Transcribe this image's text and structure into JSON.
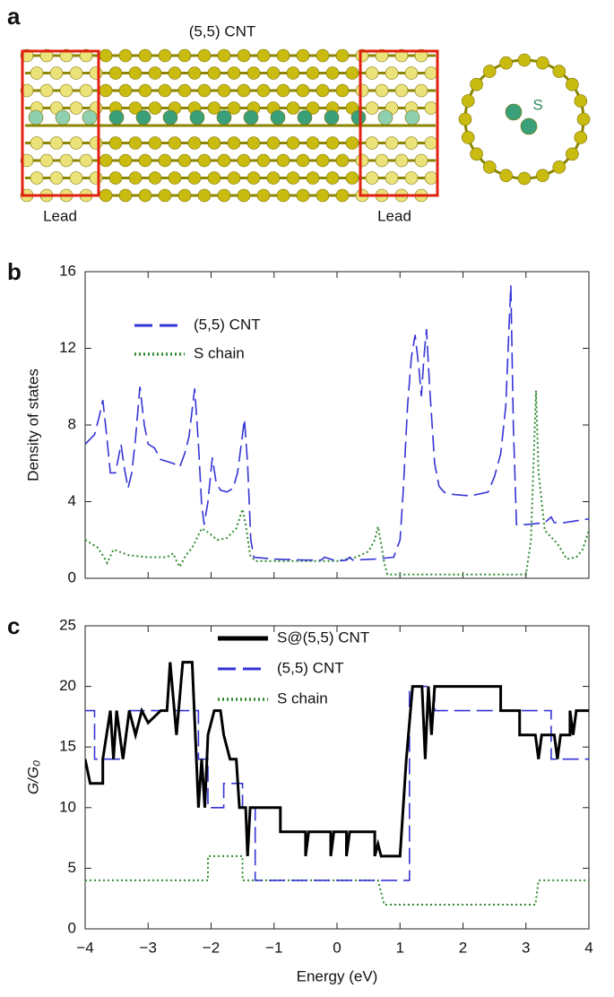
{
  "illustration": {
    "label": "a",
    "title": "(5,5) CNT",
    "left_lead": "Lead",
    "right_lead": "Lead",
    "atom_label": "S"
  },
  "chart_data": [
    {
      "type": "line",
      "label": "b",
      "ylabel": "Density of states",
      "xlim": [
        -4,
        4
      ],
      "ylim": [
        0,
        16
      ],
      "yticks": [
        0,
        4,
        8,
        12,
        16
      ],
      "legend": "upper left",
      "series": [
        {
          "name": "(5,5) CNT",
          "color": "#3434d6",
          "linestyle": "dashed",
          "x": [
            -4,
            -3.85,
            -3.78,
            -3.72,
            -3.66,
            -3.6,
            -3.52,
            -3.47,
            -3.43,
            -3.38,
            -3.32,
            -3.26,
            -3.2,
            -3.13,
            -3.06,
            -3.0,
            -2.9,
            -2.8,
            -2.7,
            -2.6,
            -2.5,
            -2.42,
            -2.35,
            -2.3,
            -2.26,
            -2.2,
            -2.15,
            -2.11,
            -2.05,
            -1.98,
            -1.92,
            -1.85,
            -1.75,
            -1.65,
            -1.58,
            -1.52,
            -1.47,
            -1.42,
            -1.37,
            -1.32,
            -1.0,
            -0.5,
            -0.25,
            -0.2,
            0.0,
            0.15,
            0.2,
            0.25,
            0.6,
            0.9,
            1.0,
            1.05,
            1.12,
            1.18,
            1.24,
            1.3,
            1.34,
            1.38,
            1.42,
            1.47,
            1.55,
            1.62,
            1.7,
            1.77,
            2.12,
            2.4,
            2.5,
            2.6,
            2.68,
            2.73,
            2.76,
            2.8,
            2.85,
            3.0,
            3.3,
            3.4,
            3.45,
            3.6,
            4.0
          ],
          "values": [
            7.0,
            7.5,
            8.4,
            9.3,
            7.5,
            5.5,
            5.5,
            6.3,
            7.0,
            5.8,
            4.7,
            5.5,
            7.3,
            10.0,
            8.0,
            7.0,
            6.8,
            6.2,
            6.1,
            6.0,
            5.8,
            6.5,
            7.4,
            8.8,
            9.9,
            7.0,
            3.8,
            2.8,
            4.0,
            6.3,
            5.0,
            4.6,
            4.5,
            4.7,
            5.5,
            7.0,
            8.3,
            6.0,
            2.0,
            1.1,
            1.0,
            0.95,
            0.95,
            1.1,
            0.9,
            0.95,
            1.1,
            0.95,
            1.0,
            1.1,
            2.0,
            4.5,
            9.0,
            11.5,
            12.7,
            11.0,
            9.5,
            11.5,
            13.0,
            10.0,
            6.0,
            4.8,
            4.5,
            4.4,
            4.3,
            4.5,
            5.3,
            6.5,
            9.0,
            13.0,
            15.3,
            8.0,
            2.8,
            2.8,
            2.9,
            3.2,
            2.9,
            2.9,
            3.1
          ]
        },
        {
          "name": "S chain",
          "color": "#2f8a2f",
          "linestyle": "dotted",
          "x": [
            -4,
            -3.8,
            -3.72,
            -3.65,
            -3.55,
            -3.3,
            -3.0,
            -2.7,
            -2.6,
            -2.55,
            -2.5,
            -2.4,
            -2.3,
            -2.15,
            -2.05,
            -1.9,
            -1.75,
            -1.6,
            -1.5,
            -1.45,
            -1.38,
            -1.3,
            -0.5,
            0.0,
            0.3,
            0.5,
            0.6,
            0.65,
            0.7,
            0.75,
            0.8,
            1.5,
            2.5,
            3.0,
            3.08,
            3.12,
            3.16,
            3.2,
            3.3,
            3.5,
            3.65,
            3.8,
            3.9,
            4.0
          ],
          "values": [
            2.0,
            1.6,
            1.2,
            0.8,
            1.5,
            1.2,
            1.1,
            1.1,
            1.3,
            0.9,
            0.6,
            1.2,
            1.6,
            2.6,
            2.4,
            2.0,
            2.1,
            2.6,
            3.6,
            2.8,
            1.2,
            0.9,
            0.9,
            0.9,
            1.1,
            1.4,
            2.0,
            2.7,
            1.8,
            0.8,
            0.2,
            0.2,
            0.2,
            0.2,
            2.0,
            6.0,
            9.8,
            5.5,
            2.5,
            1.8,
            1.0,
            1.1,
            1.5,
            2.5
          ]
        }
      ]
    },
    {
      "type": "line",
      "label": "c",
      "ylabel": "G/G₀",
      "xlabel": "Energy (eV)",
      "xlim": [
        -4,
        4
      ],
      "ylim": [
        0,
        25
      ],
      "xticks": [
        {
          "value": -4,
          "label": "−4"
        },
        {
          "value": -3,
          "label": "−3"
        },
        {
          "value": -2,
          "label": "−2"
        },
        {
          "value": -1,
          "label": "−1"
        },
        0,
        1,
        2,
        3,
        4
      ],
      "yticks": [
        0,
        5,
        10,
        15,
        20,
        25
      ],
      "legend": "upper center",
      "series": [
        {
          "name": "S@(5,5) CNT",
          "color": "#000000",
          "linestyle": "solid",
          "x": [
            -4,
            -3.92,
            -3.72,
            -3.72,
            -3.6,
            -3.55,
            -3.5,
            -3.4,
            -3.3,
            -3.2,
            -3.1,
            -3.0,
            -2.8,
            -2.7,
            -2.65,
            -2.55,
            -2.45,
            -2.3,
            -2.25,
            -2.2,
            -2.15,
            -2.1,
            -2.05,
            -1.95,
            -1.85,
            -1.8,
            -1.7,
            -1.6,
            -1.55,
            -1.45,
            -1.42,
            -1.38,
            -1.3,
            -0.9,
            -0.9,
            -0.5,
            -0.5,
            -0.45,
            -0.1,
            -0.1,
            -0.05,
            0.15,
            0.15,
            0.2,
            0.6,
            0.6,
            0.65,
            0.7,
            1.0,
            1.05,
            1.1,
            1.15,
            1.2,
            1.35,
            1.4,
            1.45,
            1.5,
            1.55,
            2.6,
            2.6,
            2.9,
            2.9,
            3.15,
            3.2,
            3.25,
            3.45,
            3.5,
            3.55,
            3.7,
            3.7,
            3.75,
            3.8,
            4.0
          ],
          "values": [
            14,
            12,
            12,
            14,
            18,
            14,
            18,
            14,
            18,
            16,
            18,
            17,
            18,
            18,
            22,
            16,
            22,
            22,
            16,
            10,
            14,
            10,
            16,
            18,
            18,
            16,
            14,
            14,
            10,
            10,
            6,
            10,
            10,
            10,
            8,
            8,
            6,
            8,
            8,
            6,
            8,
            8,
            6,
            8,
            8,
            6,
            7,
            6,
            6,
            10,
            14,
            17,
            20,
            20,
            14,
            20,
            16,
            20,
            20,
            18,
            18,
            16,
            16,
            14,
            16,
            16,
            14,
            16,
            16,
            18,
            16,
            18,
            18
          ]
        },
        {
          "name": "(5,5) CNT",
          "color": "#3434d6",
          "linestyle": "dashed",
          "x": [
            -4,
            -3.85,
            -3.85,
            -3.4,
            -3.35,
            -3.3,
            -2.2,
            -2.2,
            -2.05,
            -2.05,
            -1.8,
            -1.8,
            -1.5,
            -1.5,
            -1.3,
            -1.3,
            1.15,
            1.15,
            1.55,
            1.55,
            3.4,
            3.4,
            4.0
          ],
          "values": [
            18,
            18,
            14,
            14,
            16,
            18,
            18,
            14,
            14,
            10,
            10,
            12,
            12,
            10,
            10,
            4,
            4,
            20,
            20,
            18,
            18,
            14,
            14
          ]
        },
        {
          "name": "S chain",
          "color": "#2f8a2f",
          "linestyle": "dotted",
          "x": [
            -4,
            -2.05,
            -2.05,
            -1.5,
            -1.5,
            0.65,
            0.75,
            3.15,
            3.2,
            4.0
          ],
          "values": [
            4,
            4,
            6,
            6,
            4,
            4,
            2,
            2,
            4,
            4
          ]
        }
      ]
    }
  ]
}
